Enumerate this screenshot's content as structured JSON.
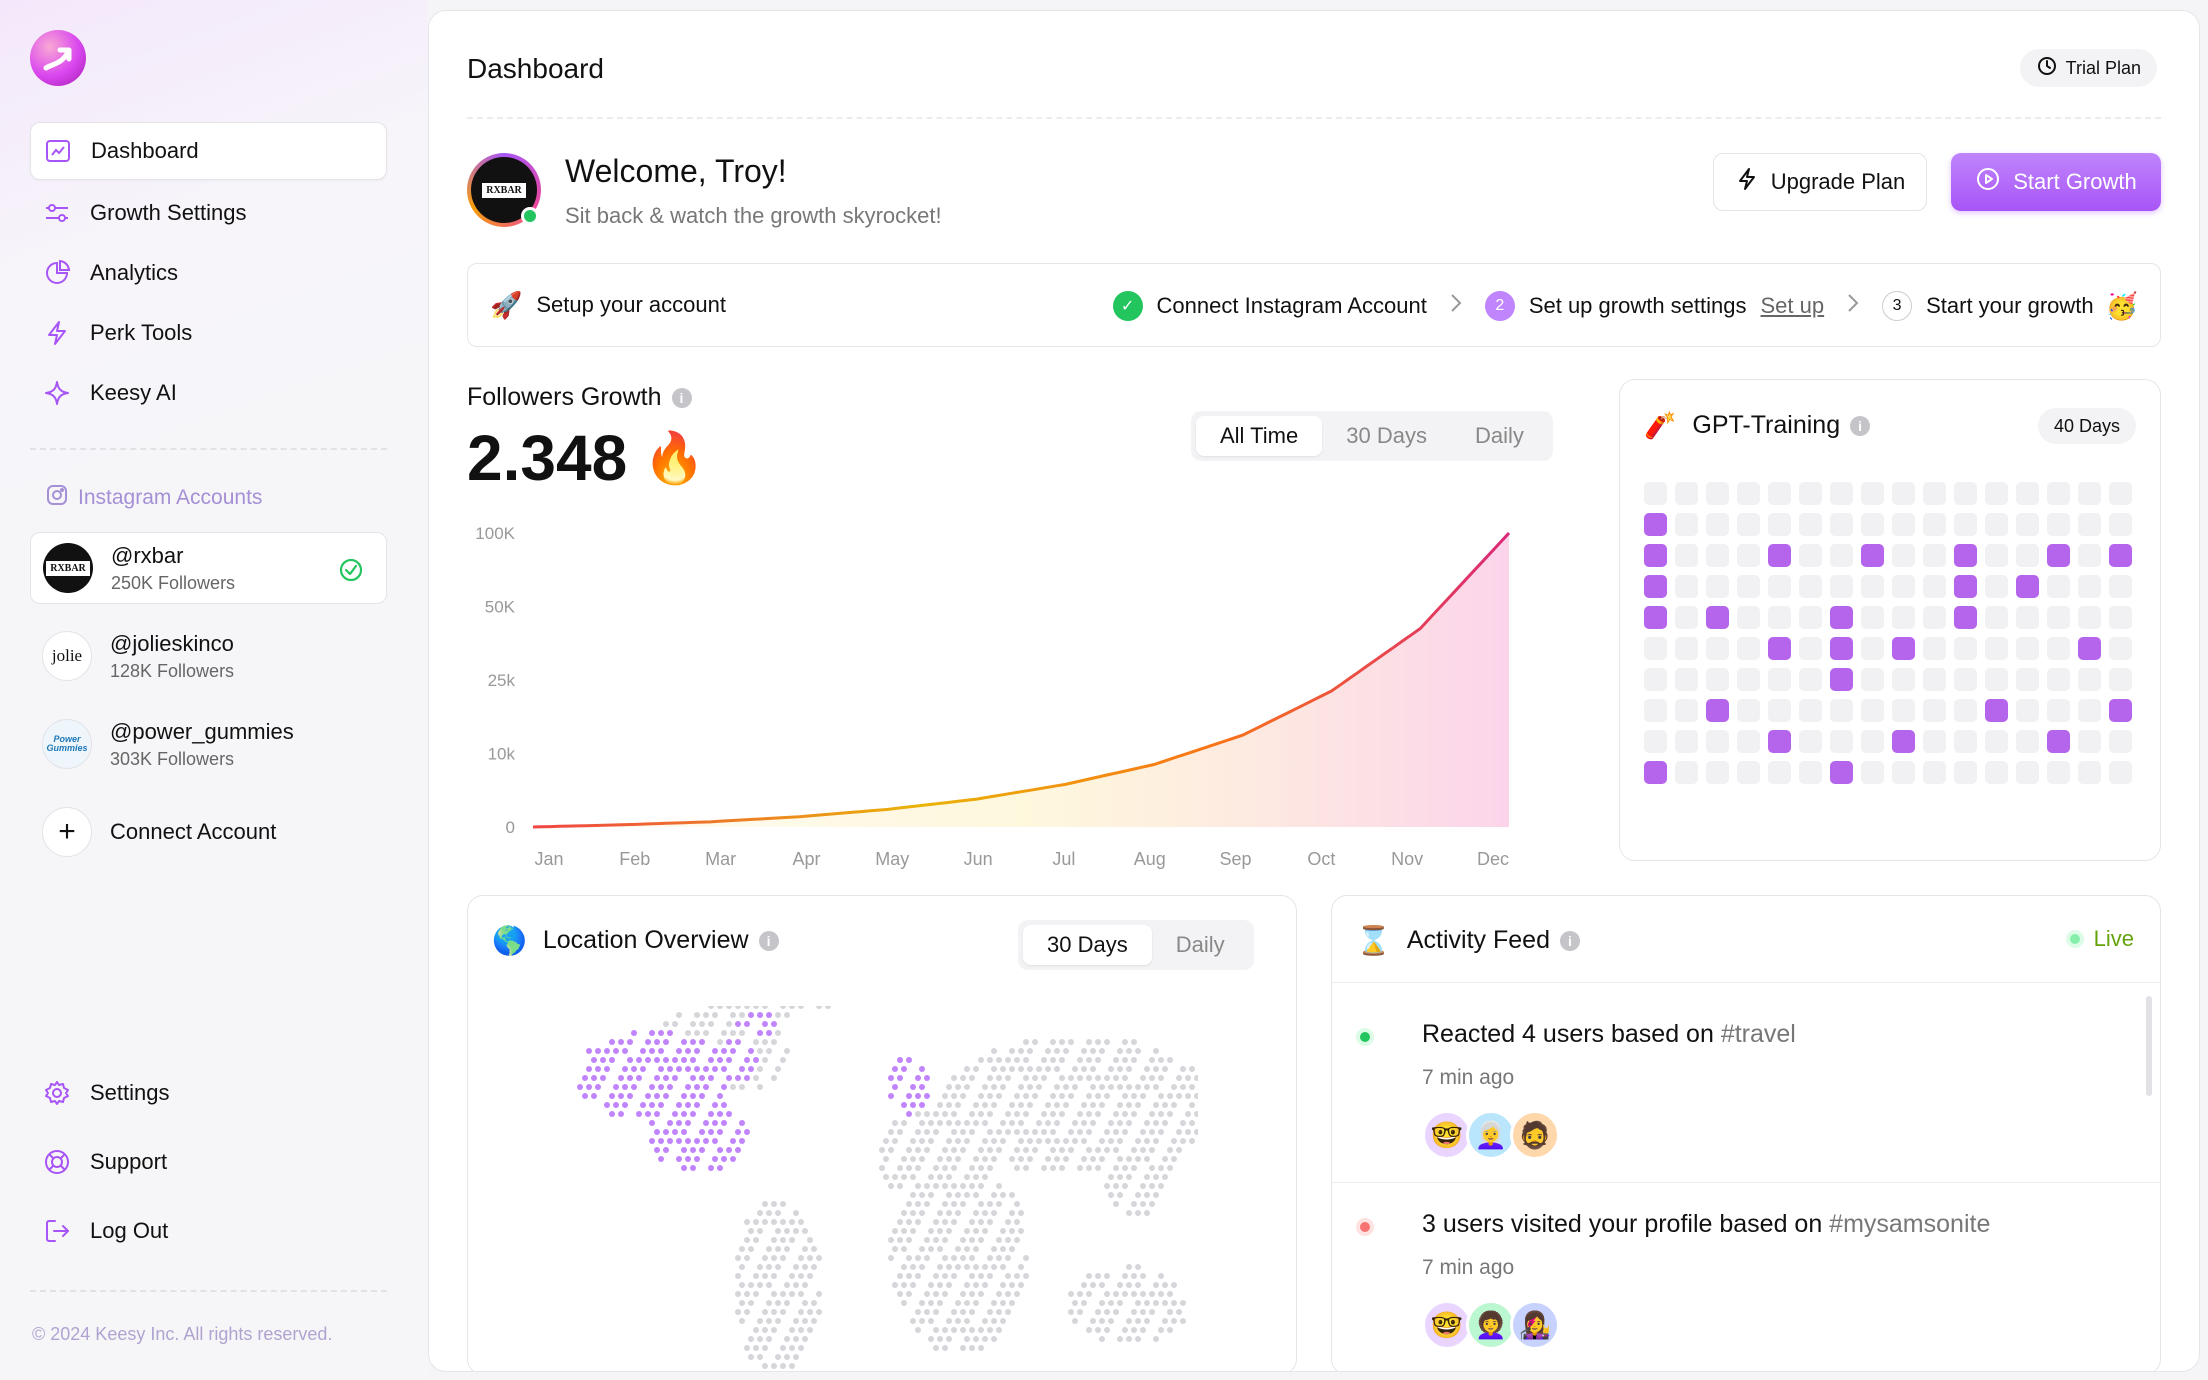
{
  "brand": {
    "logo_icon": "arrow-up-right-logo-icon",
    "accent": "#a855f7"
  },
  "sidebar": {
    "nav": [
      {
        "label": "Dashboard",
        "icon": "dashboard-icon",
        "active": true
      },
      {
        "label": "Growth Settings",
        "icon": "sliders-icon"
      },
      {
        "label": "Analytics",
        "icon": "pie-chart-icon"
      },
      {
        "label": "Perk Tools",
        "icon": "bolt-icon"
      },
      {
        "label": "Keesy AI",
        "icon": "sparkle-icon"
      }
    ],
    "section_label": "Instagram Accounts",
    "accounts": [
      {
        "handle": "@rxbar",
        "followers": "250K Followers",
        "avatar_text": "RXBAR",
        "active": true
      },
      {
        "handle": "@jolieskinco",
        "followers": "128K Followers",
        "avatar_text": "jolie"
      },
      {
        "handle": "@power_gummies",
        "followers": "303K Followers",
        "avatar_text": "Power Gummies"
      }
    ],
    "connect_label": "Connect Account",
    "bottom": [
      {
        "label": "Settings",
        "icon": "gear-icon"
      },
      {
        "label": "Support",
        "icon": "lifebuoy-icon"
      },
      {
        "label": "Log Out",
        "icon": "logout-icon"
      }
    ],
    "copyright": "© 2024 Keesy Inc. All rights reserved."
  },
  "header": {
    "title": "Dashboard",
    "trial": "Trial Plan"
  },
  "welcome": {
    "avatar_text": "RXBAR",
    "title": "Welcome, Troy!",
    "subtitle": "Sit back & watch the growth skyrocket!",
    "upgrade_label": "Upgrade Plan",
    "start_label": "Start Growth"
  },
  "setup": {
    "lead": "Setup your account",
    "lead_icon": "🚀",
    "steps": [
      {
        "num": "✓",
        "label": "Connect Instagram Account",
        "state": "done"
      },
      {
        "num": "2",
        "label": "Set up growth settings",
        "link": "Set up",
        "state": "current"
      },
      {
        "num": "3",
        "label": "Start your growth",
        "emoji": "🥳",
        "state": "next"
      }
    ]
  },
  "followers": {
    "title": "Followers Growth",
    "value": "2.348",
    "value_icon": "🔥",
    "tabs": [
      "All Time",
      "30 Days",
      "Daily"
    ],
    "active_tab": "All Time"
  },
  "chart_data": {
    "type": "area",
    "title": "Followers Growth",
    "categories": [
      "Jan",
      "Feb",
      "Mar",
      "Apr",
      "May",
      "Jun",
      "Jul",
      "Aug",
      "Sep",
      "Oct",
      "Nov",
      "Dec"
    ],
    "y_ticks": [
      "0",
      "10k",
      "25k",
      "50K",
      "100K"
    ],
    "series": [
      {
        "values": [
          0,
          0.3,
          0.7,
          1.4,
          2.4,
          3.8,
          5.8,
          8.5,
          12.5,
          18.5,
          27,
          40
        ]
      }
    ],
    "grid": false
  },
  "gpt": {
    "title": "GPT-Training",
    "icon": "🧨",
    "badge": "40 Days",
    "rows": 10,
    "cols": 16,
    "active_cells": [
      [
        1,
        0
      ],
      [
        2,
        0
      ],
      [
        2,
        4
      ],
      [
        2,
        7
      ],
      [
        2,
        10
      ],
      [
        2,
        13
      ],
      [
        2,
        15
      ],
      [
        3,
        0
      ],
      [
        3,
        10
      ],
      [
        3,
        12
      ],
      [
        4,
        0
      ],
      [
        4,
        2
      ],
      [
        4,
        6
      ],
      [
        4,
        10
      ],
      [
        5,
        4
      ],
      [
        5,
        6
      ],
      [
        5,
        8
      ],
      [
        5,
        14
      ],
      [
        6,
        6
      ],
      [
        7,
        2
      ],
      [
        7,
        11
      ],
      [
        7,
        15
      ],
      [
        8,
        4
      ],
      [
        8,
        8
      ],
      [
        8,
        13
      ],
      [
        9,
        0
      ],
      [
        9,
        6
      ]
    ]
  },
  "location": {
    "title": "Location Overview",
    "icon": "🌎",
    "tabs": [
      "30 Days",
      "Daily"
    ],
    "active_tab": "30 Days"
  },
  "activity": {
    "title": "Activity Feed",
    "icon": "⌛",
    "live": "Live",
    "items": [
      {
        "text": "Reacted 4 users based on ",
        "tag": "#travel",
        "time": "7 min ago",
        "color": "#22c55e",
        "ring": "#dcfce7",
        "avatars": [
          "🤓",
          "👩‍🦳",
          "🧔"
        ]
      },
      {
        "text": "3 users visited your profile based on ",
        "tag": "#mysamsonite",
        "time": "7 min ago",
        "color": "#f87171",
        "ring": "#fee2e2",
        "avatars": [
          "🤓",
          "👩‍🦱",
          "👩‍🎤"
        ]
      }
    ]
  }
}
